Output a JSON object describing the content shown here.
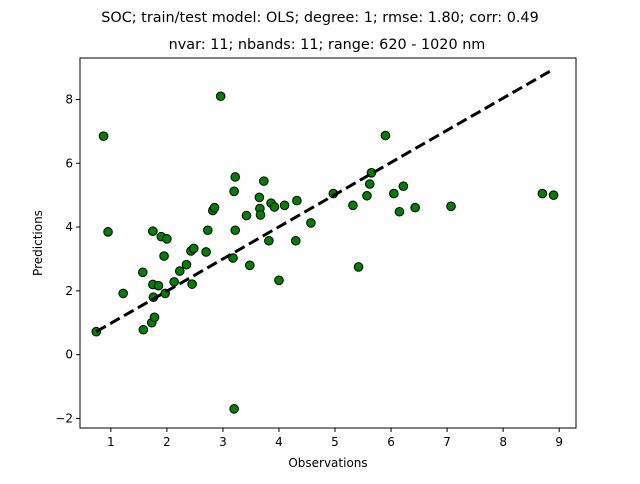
{
  "chart_data": {
    "type": "scatter",
    "title": "SOC; train/test model: OLS; degree: 1; rmse: 1.80; corr: 0.49",
    "subtitle": "nvar: 11; nbands: 11; range: 620 - 1020 nm",
    "xlabel": "Observations",
    "ylabel": "Predictions",
    "xlim": [
      0.45,
      9.3
    ],
    "ylim": [
      -2.3,
      9.3
    ],
    "xticks": [
      1,
      2,
      3,
      4,
      5,
      6,
      7,
      8,
      9
    ],
    "yticks": [
      -2,
      0,
      2,
      4,
      6,
      8
    ],
    "grid": false,
    "marker_color": "#008000",
    "marker_edge": "#000000",
    "line_color": "#000000",
    "fit_line": {
      "x": [
        0.74,
        8.9
      ],
      "y": [
        0.72,
        8.95
      ]
    },
    "points": [
      [
        0.74,
        0.72
      ],
      [
        0.87,
        6.85
      ],
      [
        0.95,
        3.85
      ],
      [
        1.22,
        1.92
      ],
      [
        1.57,
        2.58
      ],
      [
        1.58,
        0.78
      ],
      [
        1.73,
        1.0
      ],
      [
        1.75,
        3.87
      ],
      [
        1.75,
        2.2
      ],
      [
        1.76,
        1.8
      ],
      [
        1.78,
        1.17
      ],
      [
        1.85,
        2.16
      ],
      [
        1.9,
        3.7
      ],
      [
        1.95,
        3.09
      ],
      [
        1.97,
        1.92
      ],
      [
        2.0,
        3.63
      ],
      [
        2.13,
        2.28
      ],
      [
        2.23,
        2.62
      ],
      [
        2.35,
        2.82
      ],
      [
        2.43,
        3.25
      ],
      [
        2.45,
        2.21
      ],
      [
        2.48,
        3.33
      ],
      [
        2.7,
        3.22
      ],
      [
        2.73,
        3.9
      ],
      [
        2.82,
        4.52
      ],
      [
        2.85,
        4.61
      ],
      [
        2.96,
        8.1
      ],
      [
        3.18,
        3.03
      ],
      [
        3.2,
        5.12
      ],
      [
        3.2,
        -1.7
      ],
      [
        3.22,
        3.9
      ],
      [
        3.22,
        5.57
      ],
      [
        3.42,
        4.36
      ],
      [
        3.48,
        2.8
      ],
      [
        3.65,
        4.93
      ],
      [
        3.66,
        4.58
      ],
      [
        3.67,
        4.38
      ],
      [
        3.73,
        5.44
      ],
      [
        3.82,
        3.57
      ],
      [
        3.86,
        4.75
      ],
      [
        3.92,
        4.63
      ],
      [
        4.0,
        2.33
      ],
      [
        4.1,
        4.68
      ],
      [
        4.3,
        3.57
      ],
      [
        4.32,
        4.83
      ],
      [
        4.57,
        4.13
      ],
      [
        4.97,
        5.05
      ],
      [
        5.32,
        4.68
      ],
      [
        5.42,
        2.75
      ],
      [
        5.57,
        4.98
      ],
      [
        5.62,
        5.35
      ],
      [
        5.65,
        5.7
      ],
      [
        5.9,
        6.87
      ],
      [
        6.05,
        5.05
      ],
      [
        6.15,
        4.48
      ],
      [
        6.22,
        5.28
      ],
      [
        6.43,
        4.61
      ],
      [
        7.07,
        4.65
      ],
      [
        8.7,
        5.05
      ],
      [
        8.9,
        5.0
      ]
    ]
  }
}
